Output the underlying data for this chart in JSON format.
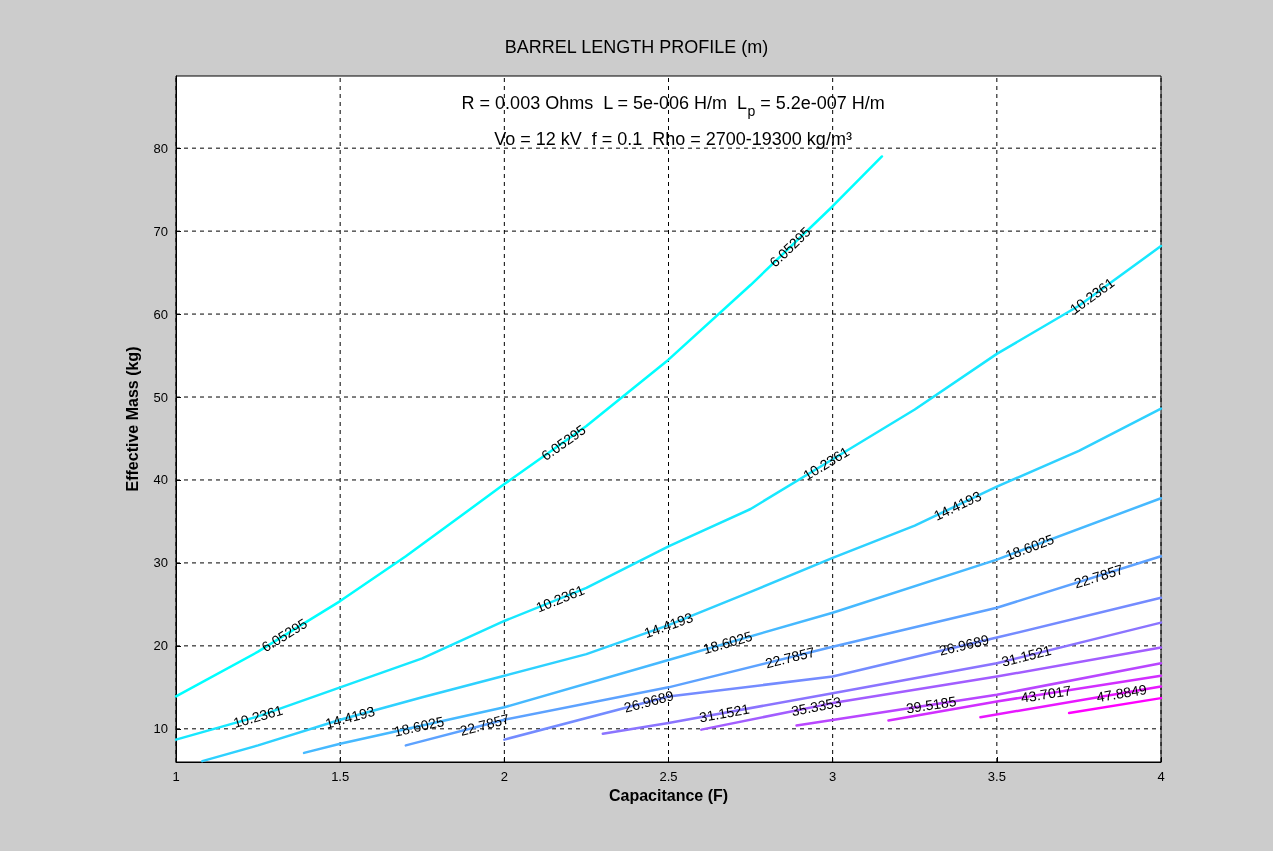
{
  "chart_data": {
    "type": "line",
    "title": "BARREL LENGTH PROFILE (m)",
    "subtitle": "R = 0.003 Ohms  L = 5e-006 H/m  L$_{p}$ = 5.2e-007 H/m\nVo = 12 kV  f = 0.1  Rho = 2700-19300 kg/m³",
    "xlabel": "Capacitance (F)",
    "ylabel": "Effective Mass (kg)",
    "xlim": [
      1,
      4
    ],
    "ylim": [
      6,
      88.7
    ],
    "xticks": [
      1,
      1.5,
      2,
      2.5,
      3,
      3.5,
      4
    ],
    "yticks": [
      10,
      20,
      30,
      40,
      50,
      60,
      70,
      80
    ],
    "grid": true,
    "marker": "none",
    "line_style": "solid",
    "series": [
      {
        "color": "#00ffff",
        "x": [
          1,
          1.25,
          1.5,
          1.7,
          2,
          2.25,
          2.5,
          2.75,
          3,
          3.15
        ],
        "values": [
          13.9,
          19.3,
          25.4,
          30.8,
          39.5,
          46.5,
          54.5,
          63.5,
          73,
          79
        ]
      },
      {
        "color": "#17e8ff",
        "x": [
          1,
          1.25,
          1.5,
          1.75,
          2,
          2.25,
          2.5,
          2.75,
          3,
          3.25,
          3.5,
          3.75,
          4
        ],
        "values": [
          8.7,
          11.5,
          15,
          18.5,
          23,
          27,
          32,
          36.5,
          42.5,
          48.5,
          55.2,
          61,
          68.2
        ]
      },
      {
        "color": "#2ed1ff",
        "x": [
          1.08,
          1.25,
          1.5,
          1.75,
          2,
          2.25,
          2.5,
          2.75,
          3,
          3.25,
          3.5,
          3.75,
          4
        ],
        "values": [
          6.1,
          8,
          11.1,
          13.8,
          16.4,
          19,
          22.5,
          26.5,
          30.6,
          34.5,
          39.2,
          43.5,
          48.6
        ]
      },
      {
        "color": "#46b9ff",
        "x": [
          1.39,
          1.5,
          2,
          2.5,
          3,
          3.5,
          4
        ],
        "values": [
          7.1,
          8.2,
          12.6,
          18.3,
          24,
          30.4,
          37.8
        ]
      },
      {
        "color": "#5da2ff",
        "x": [
          1.7,
          2,
          2.5,
          3,
          3.5,
          4
        ],
        "values": [
          8,
          11.1,
          15,
          19.9,
          24.6,
          30.8
        ]
      },
      {
        "color": "#748bff",
        "x": [
          2,
          2.5,
          3,
          3.5,
          4
        ],
        "values": [
          8.7,
          13.9,
          16.3,
          21,
          25.8
        ]
      },
      {
        "color": "#8b74ff",
        "x": [
          2.3,
          2.5,
          3,
          3.5,
          4
        ],
        "values": [
          9.4,
          10.7,
          14.3,
          17.9,
          22.8
        ]
      },
      {
        "color": "#a25dff",
        "x": [
          2.6,
          3,
          3.5,
          4
        ],
        "values": [
          9.9,
          13.1,
          16.3,
          19.8
        ]
      },
      {
        "color": "#b946ff",
        "x": [
          2.89,
          3.5,
          4
        ],
        "values": [
          10.4,
          14.1,
          17.9
        ]
      },
      {
        "color": "#d12eff",
        "x": [
          3.17,
          3.5,
          4
        ],
        "values": [
          11,
          13.3,
          16.4
        ]
      },
      {
        "color": "#e817ff",
        "x": [
          3.45,
          4
        ],
        "values": [
          11.4,
          15.1
        ]
      },
      {
        "color": "#ff00ff",
        "x": [
          3.72,
          4
        ],
        "values": [
          11.9,
          13.7
        ]
      }
    ],
    "annotations": [
      {
        "text": "6.05295",
        "x": 1.33,
        "y": 21.3
      },
      {
        "text": "6.05295",
        "x": 2.18,
        "y": 44.5
      },
      {
        "text": "6.05295",
        "x": 2.87,
        "y": 68.1
      },
      {
        "text": "10.2361",
        "x": 1.25,
        "y": 11.5
      },
      {
        "text": "10.2361",
        "x": 2.17,
        "y": 25.7
      },
      {
        "text": "10.2361",
        "x": 2.98,
        "y": 42
      },
      {
        "text": "10.2361",
        "x": 3.79,
        "y": 62.2
      },
      {
        "text": "14.4193",
        "x": 1.53,
        "y": 11.4
      },
      {
        "text": "14.4193",
        "x": 2.5,
        "y": 22.5
      },
      {
        "text": "14.4193",
        "x": 3.38,
        "y": 36.9
      },
      {
        "text": "18.6025",
        "x": 1.74,
        "y": 10.3
      },
      {
        "text": "18.6025",
        "x": 2.68,
        "y": 20.4
      },
      {
        "text": "18.6025",
        "x": 3.6,
        "y": 31.9
      },
      {
        "text": "22.7857",
        "x": 1.94,
        "y": 10.5
      },
      {
        "text": "22.7857",
        "x": 2.87,
        "y": 18.6
      },
      {
        "text": "22.7857",
        "x": 3.81,
        "y": 28.4
      },
      {
        "text": "26.9689",
        "x": 2.44,
        "y": 13.3
      },
      {
        "text": "26.9689",
        "x": 3.4,
        "y": 20.1
      },
      {
        "text": "31.1521",
        "x": 2.67,
        "y": 11.9
      },
      {
        "text": "31.1521",
        "x": 3.59,
        "y": 18.8
      },
      {
        "text": "35.3353",
        "x": 2.95,
        "y": 12.7
      },
      {
        "text": "39.5185",
        "x": 3.3,
        "y": 12.9
      },
      {
        "text": "43.7017",
        "x": 3.65,
        "y": 14.2
      },
      {
        "text": "47.8849",
        "x": 3.88,
        "y": 14.3
      }
    ]
  }
}
